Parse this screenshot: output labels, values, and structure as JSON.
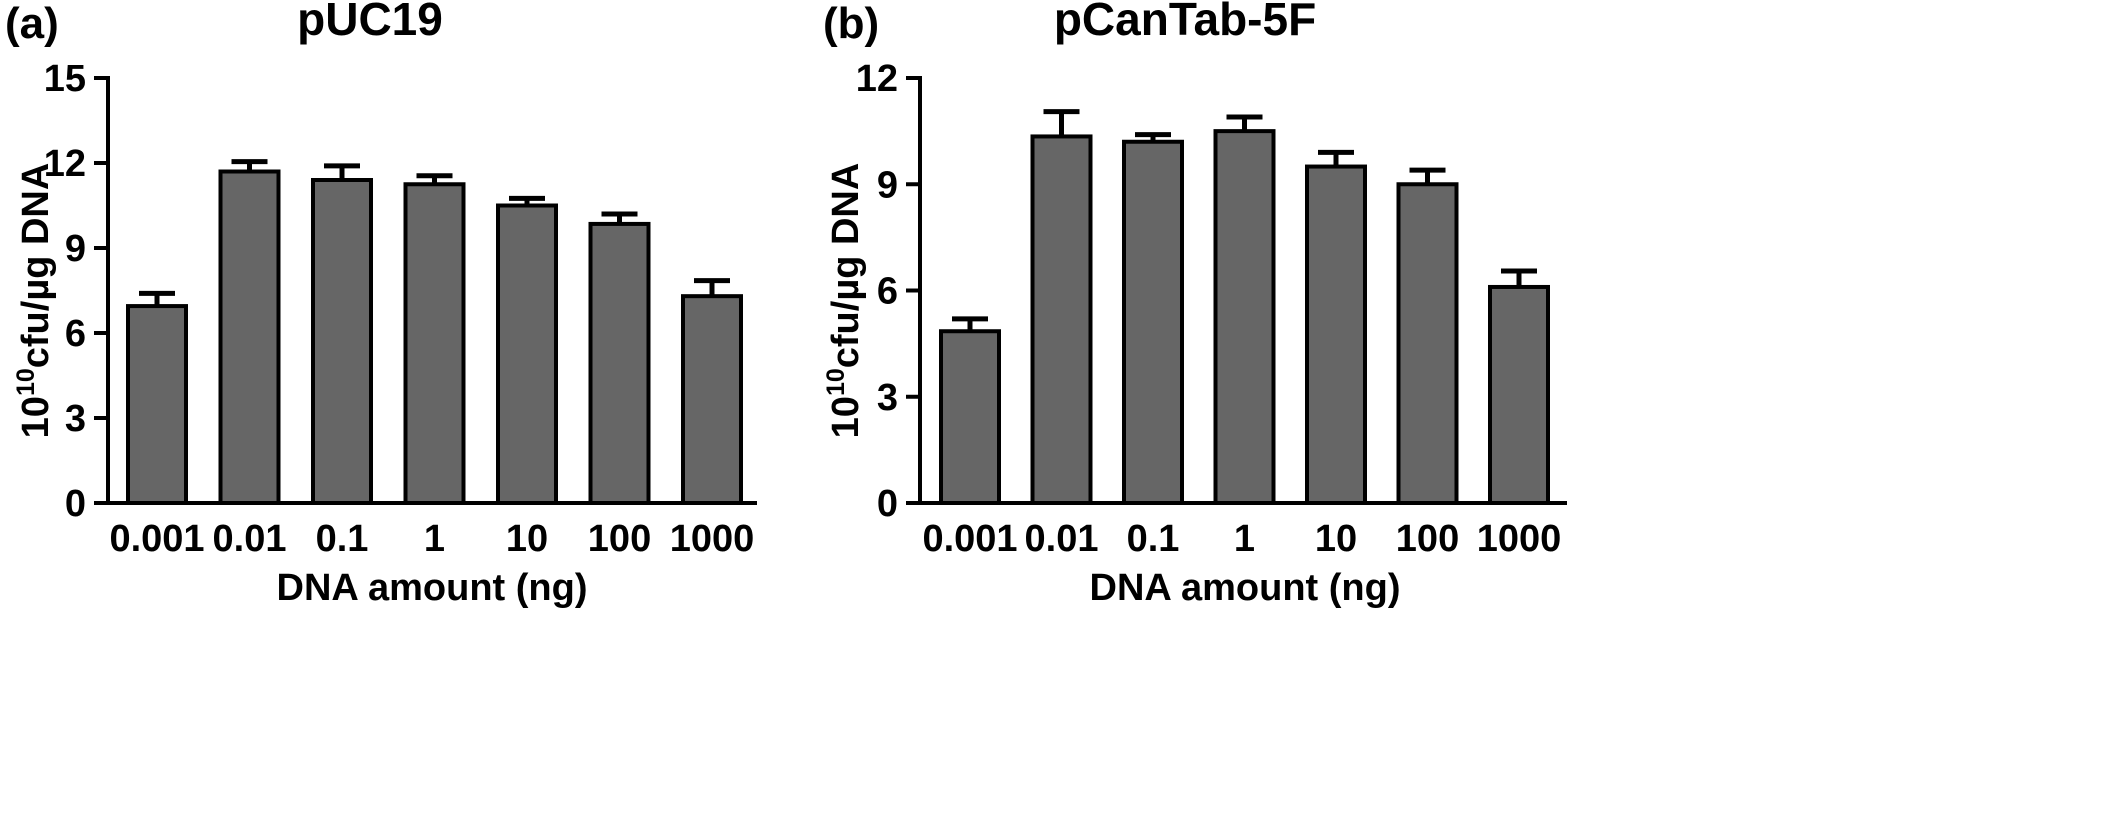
{
  "chart_data": [
    {
      "type": "bar",
      "panel": "(a)",
      "title": "pUC19",
      "xlabel": "DNA amount (ng)",
      "ylabel": {
        "base": "10",
        "exponent": "10",
        "rest": "cfu/µg DNA"
      },
      "categories": [
        "0.001",
        "0.01",
        "0.1",
        "1",
        "10",
        "100",
        "1000"
      ],
      "values": [
        6.95,
        11.7,
        11.4,
        11.25,
        10.5,
        9.85,
        7.3
      ],
      "errors": [
        0.45,
        0.35,
        0.5,
        0.3,
        0.25,
        0.35,
        0.55
      ],
      "ylim": [
        0,
        15
      ],
      "yticks": [
        "0",
        "3",
        "6",
        "9",
        "12",
        "15"
      ],
      "bar_color": "#666666",
      "grid": false
    },
    {
      "type": "bar",
      "panel": "(b)",
      "title": "pCanTab-5F",
      "xlabel": "DNA amount (ng)",
      "ylabel": {
        "base": "10",
        "exponent": "10",
        "rest": "cfu/µg DNA"
      },
      "categories": [
        "0.001",
        "0.01",
        "0.1",
        "1",
        "10",
        "100",
        "1000"
      ],
      "values": [
        4.85,
        10.35,
        10.2,
        10.5,
        9.5,
        9.0,
        6.1
      ],
      "errors": [
        0.35,
        0.7,
        0.2,
        0.4,
        0.4,
        0.4,
        0.45
      ],
      "ylim": [
        0,
        12
      ],
      "yticks": [
        "0",
        "3",
        "6",
        "9",
        "12"
      ],
      "bar_color": "#666666",
      "grid": false
    }
  ]
}
